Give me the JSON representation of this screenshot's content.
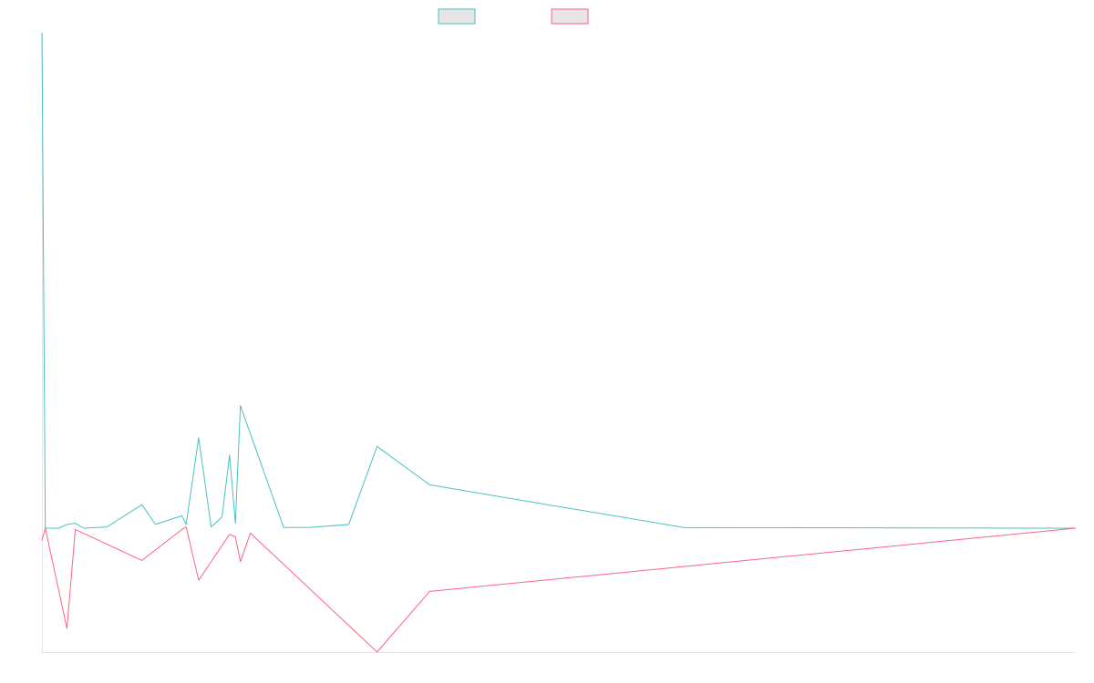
{
  "chart_data": {
    "type": "line",
    "title": "",
    "xlabel": "",
    "ylabel": "",
    "legend_position": "top-center",
    "grid": false,
    "ylim": [
      -100,
      400
    ],
    "xlim": [
      0,
      124
    ],
    "series": [
      {
        "color": "#4bc0c0",
        "points": [
          [
            0,
            400
          ],
          [
            0.4,
            0
          ],
          [
            2,
            0
          ],
          [
            3,
            3
          ],
          [
            4,
            4
          ],
          [
            5,
            0
          ],
          [
            7.8,
            1
          ],
          [
            12,
            19
          ],
          [
            13.6,
            3
          ],
          [
            16.8,
            10
          ],
          [
            17.3,
            3
          ],
          [
            18.8,
            73
          ],
          [
            20.3,
            1
          ],
          [
            21.6,
            9
          ],
          [
            22.5,
            59
          ],
          [
            23.2,
            4
          ],
          [
            23.8,
            99
          ],
          [
            29,
            0.5
          ],
          [
            32,
            0.5
          ],
          [
            36.8,
            3
          ],
          [
            40.2,
            66
          ],
          [
            46.5,
            35
          ],
          [
            77,
            0.5
          ],
          [
            124,
            0
          ]
        ]
      },
      {
        "color": "#ff6384",
        "points": [
          [
            0,
            -10
          ],
          [
            0.4,
            0
          ],
          [
            3,
            -81
          ],
          [
            4,
            -1
          ],
          [
            12,
            -26
          ],
          [
            16.8,
            -1
          ],
          [
            17.3,
            1
          ],
          [
            18.8,
            -42
          ],
          [
            22.5,
            -5
          ],
          [
            23.2,
            -7
          ],
          [
            23.8,
            -27
          ],
          [
            25,
            -4
          ],
          [
            40.2,
            -100
          ],
          [
            46.5,
            -51
          ],
          [
            124,
            0
          ]
        ]
      }
    ]
  }
}
